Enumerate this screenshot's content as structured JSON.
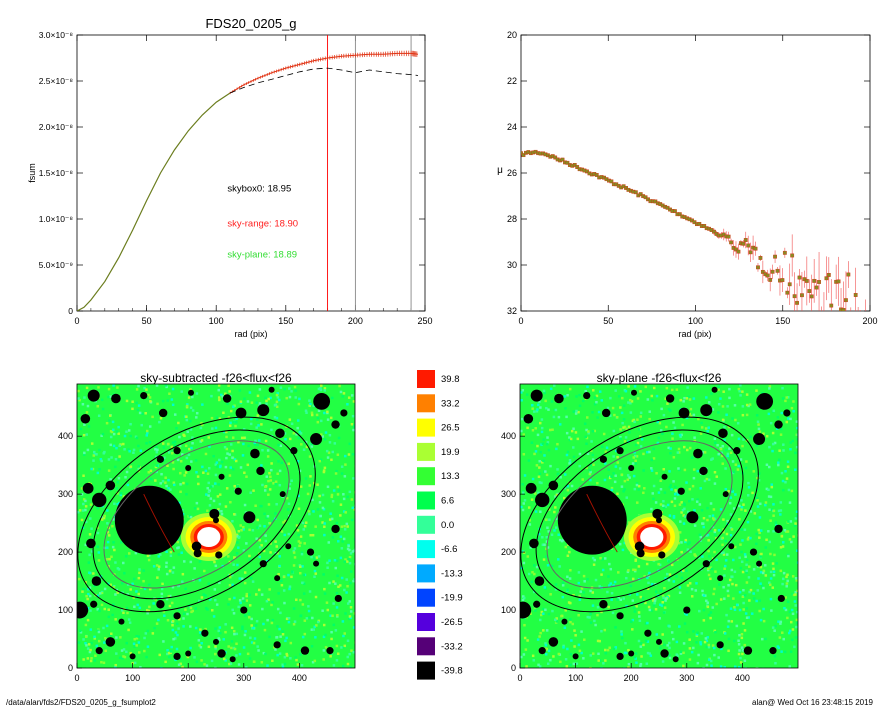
{
  "footer": {
    "left": "/data/alan/fds2/FDS20_0205_g_fsumplot2",
    "right": "alan@  Wed Oct 16 23:48:15 2019"
  },
  "chart_data": [
    {
      "id": "fsum",
      "type": "line",
      "title": "FDS20_0205_g",
      "xlabel": "rad (pix)",
      "ylabel": "fsum",
      "xlim": [
        0,
        250
      ],
      "ylim": [
        0,
        3e-08
      ],
      "xticks": [
        0,
        50,
        100,
        150,
        200,
        250
      ],
      "yticks": [
        {
          "value": 0,
          "label": "0"
        },
        {
          "value": 5e-09,
          "label": "5.0×10⁻⁹"
        },
        {
          "value": 1e-08,
          "label": "1.0×10⁻⁸"
        },
        {
          "value": 1.5e-08,
          "label": "1.5×10⁻⁸"
        },
        {
          "value": 2e-08,
          "label": "2.0×10⁻⁸"
        },
        {
          "value": 2.5e-08,
          "label": "2.5×10⁻⁸"
        },
        {
          "value": 3e-08,
          "label": "3.0×10⁻⁸"
        }
      ],
      "series": [
        {
          "style": "solid",
          "color": "#6b7d1e",
          "x": [
            0,
            5,
            10,
            20,
            30,
            40,
            50,
            60,
            70,
            80,
            90,
            100,
            110
          ],
          "y": [
            0,
            4e-10,
            1.2e-09,
            3.2e-09,
            5.8e-09,
            8.8e-09,
            1.2e-08,
            1.5e-08,
            1.75e-08,
            1.96e-08,
            2.13e-08,
            2.27e-08,
            2.37e-08
          ]
        },
        {
          "style": "points-with-errors",
          "color": "#e03010",
          "x": [
            110,
            120,
            130,
            140,
            150,
            160,
            170,
            180,
            190,
            200,
            210,
            220,
            230,
            240,
            245
          ],
          "y": [
            2.37e-08,
            2.46e-08,
            2.53e-08,
            2.59e-08,
            2.64e-08,
            2.68e-08,
            2.72e-08,
            2.75e-08,
            2.77e-08,
            2.78e-08,
            2.79e-08,
            2.79e-08,
            2.8e-08,
            2.8e-08,
            2.79e-08
          ]
        },
        {
          "style": "dashed",
          "color": "#000000",
          "x": [
            110,
            120,
            130,
            140,
            150,
            160,
            170,
            180,
            190,
            200,
            210,
            220,
            230,
            240,
            245
          ],
          "y": [
            2.37e-08,
            2.43e-08,
            2.48e-08,
            2.52e-08,
            2.56e-08,
            2.6e-08,
            2.63e-08,
            2.64e-08,
            2.62e-08,
            2.59e-08,
            2.62e-08,
            2.6e-08,
            2.58e-08,
            2.57e-08,
            2.56e-08
          ]
        }
      ],
      "vlines": [
        {
          "x": 180,
          "color": "#ff0000"
        },
        {
          "x": 200,
          "color": "#888888"
        },
        {
          "x": 240,
          "color": "#888888"
        }
      ],
      "annotations": [
        {
          "text": "skybox0: 18.95",
          "color": "#000000",
          "x": 108,
          "y": 1.3e-08
        },
        {
          "text": "sky-range: 18.90",
          "color": "#ff2020",
          "x": 108,
          "y": 9.2e-09
        },
        {
          "text": "sky-plane: 18.89",
          "color": "#33dd33",
          "x": 108,
          "y": 5.8e-09
        }
      ]
    },
    {
      "id": "mu",
      "type": "scatter",
      "xlabel": "rad (pix)",
      "ylabel": "μ",
      "xlim": [
        0,
        200
      ],
      "ylim": [
        32,
        20
      ],
      "xticks": [
        0,
        50,
        100,
        150,
        200
      ],
      "yticks": [
        20,
        22,
        24,
        26,
        28,
        30,
        32
      ],
      "profile": {
        "mu0": 25.2,
        "knee_x": 15,
        "slope": 0.0305,
        "curve": 0.00012,
        "noise_start_x": 110
      }
    },
    {
      "id": "sky-subtracted",
      "type": "heatmap",
      "title": "sky-subtracted -f26<flux<f26",
      "xlim": [
        0,
        500
      ],
      "ylim": [
        0,
        490
      ],
      "xticks": [
        0,
        100,
        200,
        300,
        400
      ],
      "yticks": [
        0,
        100,
        200,
        300,
        400
      ]
    },
    {
      "id": "sky-plane",
      "type": "heatmap",
      "title": "sky-plane -f26<flux<f26",
      "xlim": [
        0,
        500
      ],
      "ylim": [
        0,
        490
      ],
      "xticks": [
        0,
        100,
        200,
        300,
        400
      ],
      "yticks": [
        0,
        100,
        200,
        300,
        400
      ]
    }
  ],
  "colorbar": {
    "labels": [
      "39.8",
      "33.2",
      "26.5",
      "19.9",
      "13.3",
      "6.6",
      "0.0",
      "-6.6",
      "-13.3",
      "-19.9",
      "-26.5",
      "-33.2",
      "-39.8"
    ],
    "colors": [
      "#ff1a00",
      "#ff8000",
      "#ffff00",
      "#aaff33",
      "#33ff33",
      "#00ff4d",
      "#33ff99",
      "#00ffee",
      "#00aaff",
      "#0044ff",
      "#5500dd",
      "#550077",
      "#000000"
    ]
  },
  "image_features": {
    "galaxy_center": [
      237,
      226
    ],
    "big_disc": {
      "center": [
        130,
        255
      ],
      "radius": 62
    },
    "ellipse_center": [
      215,
      265
    ],
    "ellipse_angle_deg": -32,
    "ellipse_axes": [
      [
        235,
        145
      ],
      [
        205,
        125
      ],
      [
        185,
        105
      ]
    ],
    "blobs": [
      [
        30,
        470,
        10
      ],
      [
        15,
        430,
        8
      ],
      [
        70,
        465,
        8
      ],
      [
        120,
        470,
        6
      ],
      [
        155,
        440,
        7
      ],
      [
        205,
        475,
        5
      ],
      [
        270,
        465,
        7
      ],
      [
        295,
        440,
        9
      ],
      [
        335,
        445,
        10
      ],
      [
        350,
        480,
        5
      ],
      [
        440,
        460,
        14
      ],
      [
        430,
        395,
        10
      ],
      [
        465,
        420,
        7
      ],
      [
        480,
        440,
        6
      ],
      [
        365,
        405,
        8
      ],
      [
        390,
        375,
        6
      ],
      [
        320,
        370,
        8
      ],
      [
        290,
        305,
        6
      ],
      [
        330,
        340,
        7
      ],
      [
        40,
        290,
        12
      ],
      [
        20,
        310,
        9
      ],
      [
        60,
        315,
        8
      ],
      [
        25,
        215,
        8
      ],
      [
        35,
        150,
        8
      ],
      [
        30,
        110,
        6
      ],
      [
        5,
        100,
        14
      ],
      [
        80,
        80,
        5
      ],
      [
        60,
        45,
        8
      ],
      [
        40,
        30,
        6
      ],
      [
        100,
        20,
        5
      ],
      [
        180,
        20,
        6
      ],
      [
        200,
        25,
        5
      ],
      [
        260,
        25,
        7
      ],
      [
        280,
        15,
        5
      ],
      [
        150,
        110,
        7
      ],
      [
        180,
        90,
        6
      ],
      [
        230,
        60,
        6
      ],
      [
        250,
        45,
        5
      ],
      [
        300,
        100,
        6
      ],
      [
        360,
        40,
        6
      ],
      [
        410,
        30,
        7
      ],
      [
        455,
        30,
        6
      ],
      [
        470,
        120,
        6
      ],
      [
        420,
        200,
        6
      ],
      [
        430,
        180,
        5
      ],
      [
        465,
        240,
        7
      ],
      [
        380,
        210,
        5
      ],
      [
        335,
        180,
        6
      ],
      [
        180,
        375,
        6
      ],
      [
        200,
        345,
        5
      ],
      [
        150,
        360,
        6
      ],
      [
        370,
        300,
        5
      ],
      [
        260,
        330,
        5
      ],
      [
        310,
        260,
        10
      ],
      [
        215,
        210,
        8
      ],
      [
        255,
        195,
        6
      ],
      [
        250,
        255,
        5
      ],
      [
        360,
        155,
        5
      ]
    ]
  }
}
